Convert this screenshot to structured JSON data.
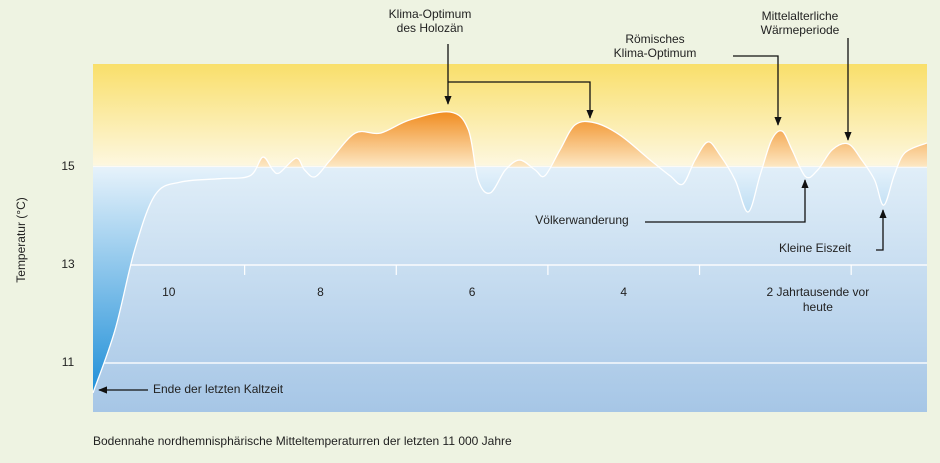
{
  "chart_data": {
    "type": "line",
    "y_label": "Temperatur (°C)",
    "caption": "Bodennahe nordhemnisphärische Mitteltemperaturren der letzten 11 000 Jahre",
    "xlim": [
      11,
      0
    ],
    "ylim": [
      10,
      17.1
    ],
    "xticks": [
      10,
      8,
      6,
      4,
      {
        "value": 2,
        "label": "2 Jahrtausende vor heute"
      }
    ],
    "xminor": [
      9,
      7,
      5,
      3,
      1
    ],
    "yticks": [
      15,
      13,
      11
    ],
    "baseline": 15,
    "color": "#ffffff",
    "warm_color": "#f08a1c",
    "cold_color": "#1e8fd8",
    "x": [
      11.0,
      10.71,
      10.45,
      10.18,
      9.85,
      9.33,
      8.93,
      8.76,
      8.63,
      8.54,
      8.32,
      8.21,
      8.07,
      7.87,
      7.54,
      7.21,
      6.82,
      6.29,
      6.05,
      5.92,
      5.76,
      5.56,
      5.37,
      5.17,
      5.04,
      4.84,
      4.64,
      4.38,
      4.05,
      3.65,
      3.39,
      3.22,
      3.06,
      2.89,
      2.73,
      2.53,
      2.36,
      2.2,
      2.05,
      1.91,
      1.78,
      1.6,
      1.44,
      1.25,
      1.04,
      0.86,
      0.69,
      0.57,
      0.43,
      0.29,
      0.0
    ],
    "values": [
      10.39,
      11.67,
      13.31,
      14.43,
      14.69,
      14.76,
      14.82,
      15.2,
      14.94,
      14.88,
      15.18,
      14.94,
      14.8,
      15.14,
      15.69,
      15.69,
      15.96,
      16.12,
      15.76,
      14.73,
      14.47,
      14.94,
      15.14,
      14.94,
      14.82,
      15.35,
      15.86,
      15.9,
      15.65,
      15.14,
      14.82,
      14.65,
      15.14,
      15.51,
      15.24,
      14.73,
      14.08,
      14.84,
      15.55,
      15.73,
      15.35,
      14.8,
      14.94,
      15.35,
      15.47,
      15.14,
      14.73,
      14.22,
      14.84,
      15.29,
      15.49
    ],
    "annotations": [
      {
        "lines": [
          "Klima-Optimum",
          "des Holozän"
        ]
      },
      {
        "lines": [
          "Römisches",
          "Klima-Optimum"
        ]
      },
      {
        "lines": [
          "Mittelalterliche",
          "Wärmeperiode"
        ]
      },
      {
        "lines": [
          "Völkerwanderung"
        ]
      },
      {
        "lines": [
          "Kleine Eiszeit"
        ]
      },
      {
        "lines": [
          "Ende der letzten Kaltzeit"
        ]
      }
    ]
  }
}
